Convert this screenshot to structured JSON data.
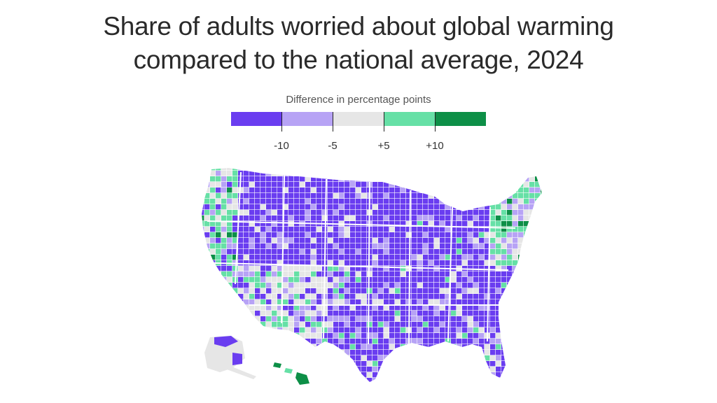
{
  "title": {
    "line1": "Share of adults worried about global warming",
    "line2": "compared to the national average, 2024"
  },
  "legend": {
    "title": "Difference in percentage points",
    "bins": [
      {
        "name": "below -10",
        "color": "#6a3df0"
      },
      {
        "name": "-10 to -5",
        "color": "#b7a3f5"
      },
      {
        "name": "-5 to +5",
        "color": "#e6e6e6"
      },
      {
        "name": "+5 to +10",
        "color": "#66e0a6"
      },
      {
        "name": "above +10",
        "color": "#0d8f47"
      }
    ],
    "ticks": [
      "-10",
      "-5",
      "+5",
      "+10"
    ]
  },
  "map": {
    "region": "United States counties",
    "regional_pattern": [
      {
        "region": "Northern Plains & Mountain West",
        "bin": "below -10"
      },
      {
        "region": "South & Midwest",
        "bin": "below -10"
      },
      {
        "region": "Pacific coast & Northeast",
        "bin": "+5 to +10"
      },
      {
        "region": "Southwest",
        "bin": "-5 to +5"
      }
    ]
  }
}
